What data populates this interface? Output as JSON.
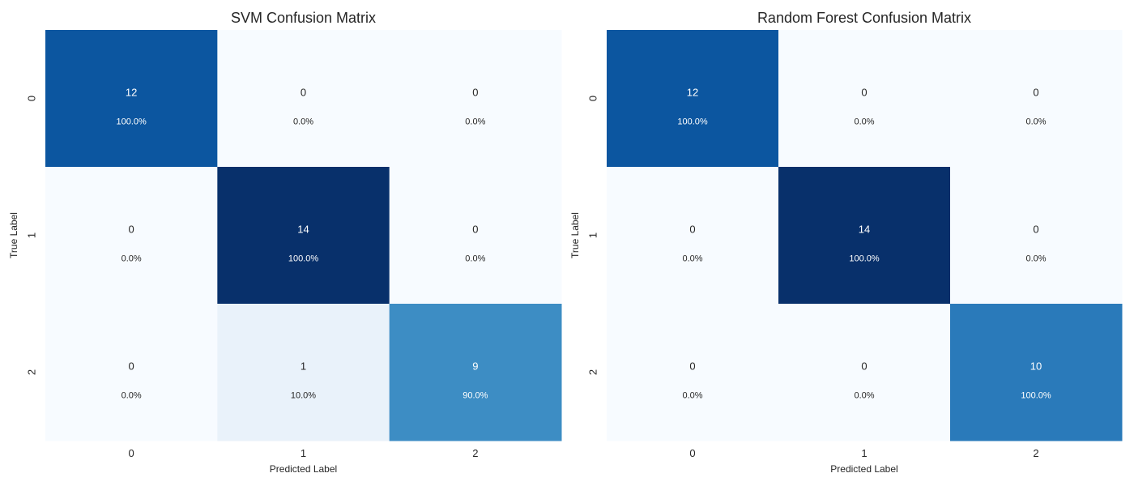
{
  "chart_data": [
    {
      "type": "heatmap",
      "title": "SVM Confusion Matrix",
      "xlabel": "Predicted Label",
      "ylabel": "True Label",
      "x_categories": [
        "0",
        "1",
        "2"
      ],
      "y_categories": [
        "0",
        "1",
        "2"
      ],
      "colormap": "Blues",
      "color_range": [
        0,
        14
      ],
      "counts": [
        [
          12,
          0,
          0
        ],
        [
          0,
          14,
          0
        ],
        [
          0,
          1,
          9
        ]
      ],
      "percent_labels": [
        [
          "100.0%",
          "0.0%",
          "0.0%"
        ],
        [
          "0.0%",
          "100.0%",
          "0.0%"
        ],
        [
          "0.0%",
          "10.0%",
          "90.0%"
        ]
      ],
      "colorbar": false
    },
    {
      "type": "heatmap",
      "title": "Random Forest Confusion Matrix",
      "xlabel": "Predicted Label",
      "ylabel": "True Label",
      "x_categories": [
        "0",
        "1",
        "2"
      ],
      "y_categories": [
        "0",
        "1",
        "2"
      ],
      "colormap": "Blues",
      "color_range": [
        0,
        14
      ],
      "counts": [
        [
          12,
          0,
          0
        ],
        [
          0,
          14,
          0
        ],
        [
          0,
          0,
          10
        ]
      ],
      "percent_labels": [
        [
          "100.0%",
          "0.0%",
          "0.0%"
        ],
        [
          "0.0%",
          "100.0%",
          "0.0%"
        ],
        [
          "0.0%",
          "0.0%",
          "100.0%"
        ]
      ],
      "colorbar": false
    }
  ]
}
